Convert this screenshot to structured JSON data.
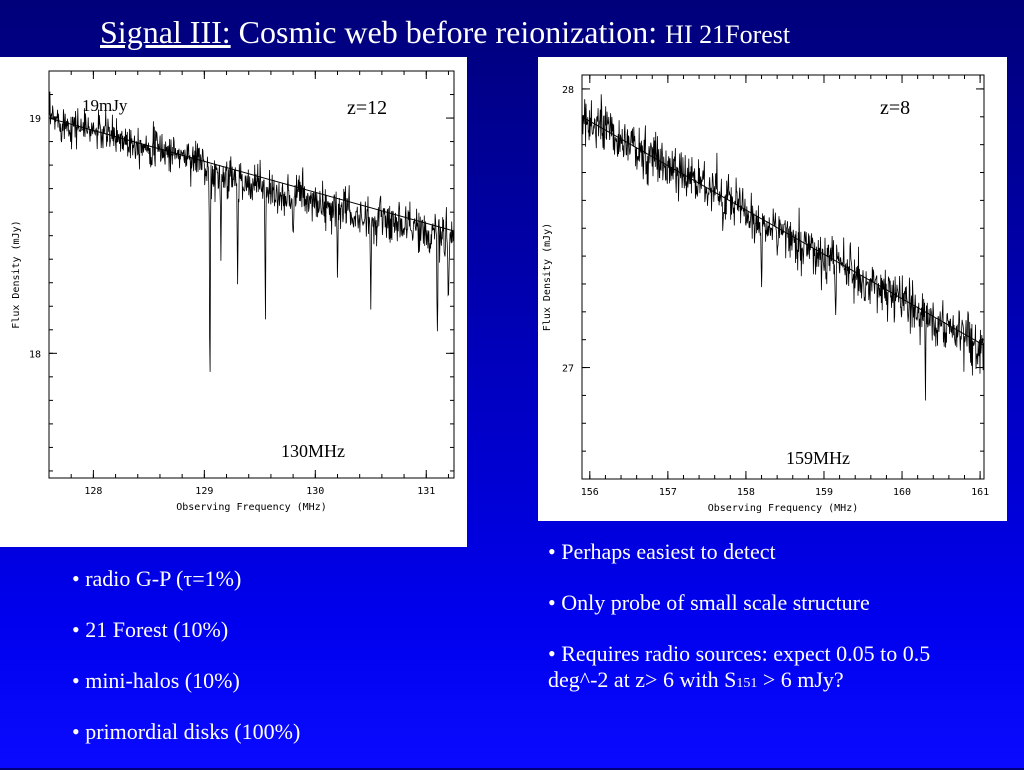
{
  "title": {
    "part1": "Signal III:",
    "part2": " Cosmic web before reionization: ",
    "part3": "HI 21Forest"
  },
  "bullets_left": [
    {
      "prefix": "• radio G-P (",
      "tau": "τ",
      "suffix": "=1%)"
    },
    {
      "text": "• 21 Forest (10%)"
    },
    {
      "text": "• mini-halos (10%)"
    },
    {
      "text": "• primordial disks (100%)"
    }
  ],
  "bullets_right": [
    {
      "text": "• Perhaps easiest to detect"
    },
    {
      "text": "• Only probe of small scale structure"
    },
    {
      "text_a": "• Requires radio sources: expect 0.05 to 0.5 deg^-2  at z> 6 with S",
      "sub": "151",
      "text_b": " > 6 mJy?"
    }
  ],
  "chart_data": [
    {
      "type": "line",
      "annotations": [
        "19mJy",
        "z=12",
        "130MHz"
      ],
      "xlabel": "Observing Frequency (MHz)",
      "ylabel": "Flux Density (mJy)",
      "xlim": [
        127.6,
        131.25
      ],
      "ylim": [
        17.47,
        19.2
      ],
      "x_ticks": [
        128,
        129,
        130,
        131
      ],
      "y_ticks": [
        18,
        19
      ],
      "continuum": {
        "x": [
          127.6,
          131.25
        ],
        "y": [
          19.0,
          18.52
        ]
      },
      "noise_sigma": 0.04,
      "absorption_lines": [
        {
          "x": 129.05,
          "depth": 0.95
        },
        {
          "x": 129.15,
          "depth": 0.35
        },
        {
          "x": 129.3,
          "depth": 0.45
        },
        {
          "x": 129.55,
          "depth": 0.6
        },
        {
          "x": 129.8,
          "depth": 0.25
        },
        {
          "x": 130.2,
          "depth": 0.3
        },
        {
          "x": 130.5,
          "depth": 0.35
        },
        {
          "x": 131.1,
          "depth": 0.4
        },
        {
          "x": 131.2,
          "depth": 0.3
        }
      ],
      "absorption_onset_x": 129.0,
      "forest_depth": 0.08
    },
    {
      "type": "line",
      "annotations": [
        "z=8",
        "159MHz"
      ],
      "xlabel": "Observing Frequency (MHz)",
      "ylabel": "Flux Density (mJy)",
      "xlim": [
        155.9,
        161.05
      ],
      "ylim": [
        26.6,
        28.05
      ],
      "x_ticks": [
        156,
        157,
        158,
        159,
        160,
        161
      ],
      "y_ticks": [
        27,
        28
      ],
      "continuum": {
        "x": [
          155.9,
          161.05
        ],
        "y": [
          27.9,
          27.08
        ]
      },
      "noise_sigma": 0.045,
      "absorption_lines": [
        {
          "x": 158.2,
          "depth": 0.3
        },
        {
          "x": 158.4,
          "depth": 0.12
        },
        {
          "x": 159.15,
          "depth": 0.15
        },
        {
          "x": 160.3,
          "depth": 0.22
        }
      ],
      "absorption_onset_x": 158.0,
      "forest_depth": 0.02
    }
  ]
}
